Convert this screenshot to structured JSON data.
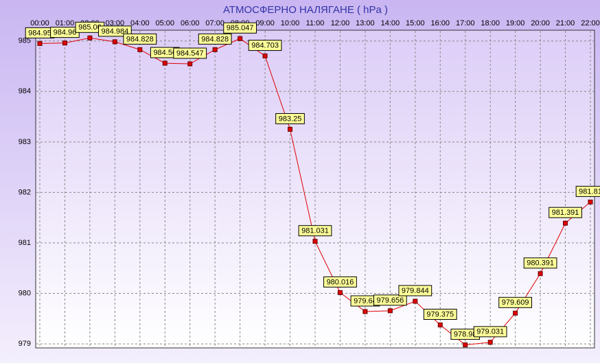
{
  "chart_data": {
    "type": "line",
    "title": "АТМОСФЕРНО НАЛЯГАНЕ  ( hPa )",
    "categories": [
      "00:00",
      "01:00",
      "02:00",
      "03:00",
      "04:00",
      "05:00",
      "06:00",
      "07:00",
      "08:00",
      "09:00",
      "10:00",
      "11:00",
      "12:00",
      "13:00",
      "14:00",
      "15:00",
      "16:00",
      "17:00",
      "18:00",
      "19:00",
      "20:00",
      "21:00",
      "22:00"
    ],
    "series": [
      {
        "color": "#e00000",
        "values": [
          984.95,
          984.96,
          985.06,
          984.984,
          984.828,
          984.56,
          984.547,
          984.828,
          985.047,
          984.703,
          983.25,
          981.031,
          980.016,
          979.64,
          979.656,
          979.844,
          979.375,
          978.98,
          979.031,
          979.609,
          980.391,
          981.391,
          981.81
        ]
      }
    ],
    "ylim": [
      978.92,
      985.2
    ],
    "yticks": [
      979,
      980,
      981,
      982,
      983,
      984,
      985
    ],
    "grid": true
  }
}
